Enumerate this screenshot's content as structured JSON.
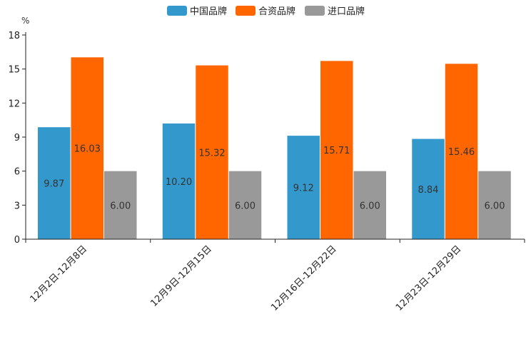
{
  "chart_data": {
    "type": "bar",
    "unit_label": "%",
    "categories": [
      "12月2日-12月8日",
      "12月9日-12月15日",
      "12月16日-12月22日",
      "12月23日-12月29日"
    ],
    "series": [
      {
        "name": "中国品牌",
        "color": "#3399cc",
        "values": [
          9.87,
          10.2,
          9.12,
          8.84
        ],
        "labels": [
          "9.87",
          "10.20",
          "9.12",
          "8.84"
        ]
      },
      {
        "name": "合资品牌",
        "color": "#ff6600",
        "values": [
          16.03,
          15.32,
          15.71,
          15.46
        ],
        "labels": [
          "16.03",
          "15.32",
          "15.71",
          "15.46"
        ]
      },
      {
        "name": "进口品牌",
        "color": "#999999",
        "values": [
          6.0,
          6.0,
          6.0,
          6.0
        ],
        "labels": [
          "6.00",
          "6.00",
          "6.00",
          "6.00"
        ]
      }
    ],
    "yticks": [
      "0",
      "3",
      "6",
      "9",
      "12",
      "15",
      "18"
    ],
    "ylim": [
      0,
      18
    ],
    "legend_position": "top-center",
    "grid": false
  }
}
